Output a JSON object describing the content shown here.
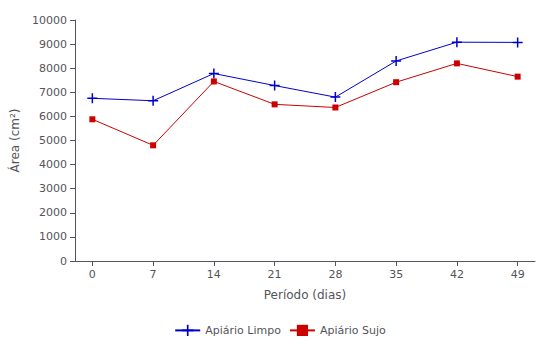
{
  "chart_data": {
    "type": "line",
    "xlabel": "Período (dias)",
    "ylabel": "Área (cm²)",
    "x": [
      0,
      7,
      14,
      21,
      28,
      35,
      42,
      49
    ],
    "xlim": [
      -2,
      51
    ],
    "xticks": [
      0,
      7,
      14,
      21,
      28,
      35,
      42,
      49
    ],
    "ylim": [
      0,
      10000
    ],
    "yticks": [
      0,
      1000,
      2000,
      3000,
      4000,
      5000,
      6000,
      7000,
      8000,
      9000,
      10000
    ],
    "grid": false,
    "legend": "bottom",
    "series": [
      {
        "name": "Apiário Limpo",
        "color": "#0000cc",
        "marker": "plus",
        "values": [
          6750,
          6650,
          7780,
          7280,
          6800,
          8300,
          9080,
          9070
        ]
      },
      {
        "name": "Apiário Sujo",
        "color": "#cc0000",
        "marker": "square",
        "values": [
          5880,
          4800,
          7450,
          6500,
          6370,
          7420,
          8200,
          7650
        ]
      }
    ]
  }
}
